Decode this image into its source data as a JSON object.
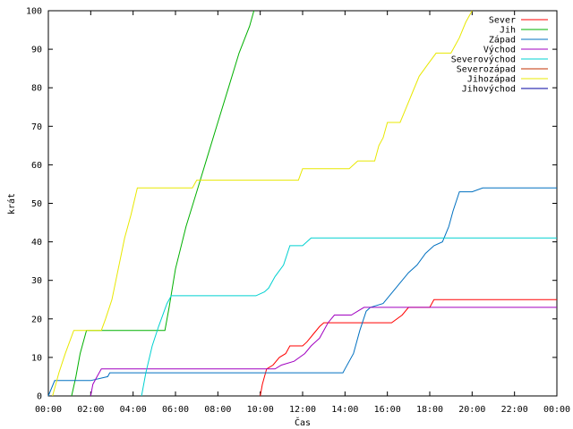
{
  "chart_data": {
    "type": "line",
    "title": "",
    "xlabel": "Čas",
    "ylabel": "krát",
    "xlim": [
      0,
      24
    ],
    "ylim": [
      0,
      100
    ],
    "x_ticks": [
      {
        "value": 0,
        "label": "00:00"
      },
      {
        "value": 2,
        "label": "02:00"
      },
      {
        "value": 4,
        "label": "04:00"
      },
      {
        "value": 6,
        "label": "06:00"
      },
      {
        "value": 8,
        "label": "08:00"
      },
      {
        "value": 10,
        "label": "10:00"
      },
      {
        "value": 12,
        "label": "12:00"
      },
      {
        "value": 14,
        "label": "14:00"
      },
      {
        "value": 16,
        "label": "16:00"
      },
      {
        "value": 18,
        "label": "18:00"
      },
      {
        "value": 20,
        "label": "20:00"
      },
      {
        "value": 22,
        "label": "22:00"
      },
      {
        "value": 24,
        "label": "00:00"
      }
    ],
    "y_ticks": [
      0,
      10,
      20,
      30,
      40,
      50,
      60,
      70,
      80,
      90,
      100
    ],
    "grid": false,
    "legend_position": "top-right",
    "series": [
      {
        "name": "Sever",
        "color": "#ff0000",
        "points": [
          [
            10.0,
            0
          ],
          [
            10.1,
            3
          ],
          [
            10.3,
            7
          ],
          [
            10.6,
            8
          ],
          [
            10.9,
            10
          ],
          [
            11.2,
            11
          ],
          [
            11.4,
            13
          ],
          [
            12.0,
            13
          ],
          [
            12.2,
            14
          ],
          [
            12.5,
            16
          ],
          [
            12.8,
            18
          ],
          [
            13.0,
            19
          ],
          [
            13.6,
            19
          ],
          [
            14.7,
            19
          ],
          [
            15.0,
            19
          ],
          [
            15.6,
            19
          ],
          [
            16.2,
            19
          ],
          [
            16.7,
            21
          ],
          [
            17.0,
            23
          ],
          [
            18.0,
            23
          ],
          [
            18.2,
            25
          ],
          [
            20.0,
            25
          ],
          [
            24.0,
            25
          ]
        ]
      },
      {
        "name": "Jih",
        "color": "#00b000",
        "points": [
          [
            1.1,
            0
          ],
          [
            1.3,
            5
          ],
          [
            1.5,
            11
          ],
          [
            1.8,
            17
          ],
          [
            2.5,
            17
          ],
          [
            5.5,
            17
          ],
          [
            5.7,
            23
          ],
          [
            6.0,
            33
          ],
          [
            6.5,
            44
          ],
          [
            7.0,
            53
          ],
          [
            7.5,
            62
          ],
          [
            8.0,
            71
          ],
          [
            8.5,
            80
          ],
          [
            9.0,
            89
          ],
          [
            9.5,
            96
          ],
          [
            9.7,
            100
          ]
        ]
      },
      {
        "name": "Západ",
        "color": "#0070c0",
        "points": [
          [
            0.0,
            0
          ],
          [
            0.3,
            4
          ],
          [
            2.0,
            4
          ],
          [
            2.8,
            5
          ],
          [
            2.9,
            6
          ],
          [
            13.0,
            6
          ],
          [
            13.9,
            6
          ],
          [
            14.0,
            7
          ],
          [
            14.4,
            11
          ],
          [
            14.7,
            17
          ],
          [
            15.0,
            22
          ],
          [
            15.2,
            23
          ],
          [
            15.8,
            24
          ],
          [
            16.1,
            26
          ],
          [
            16.4,
            28
          ],
          [
            16.7,
            30
          ],
          [
            17.0,
            32
          ],
          [
            17.4,
            34
          ],
          [
            17.8,
            37
          ],
          [
            18.2,
            39
          ],
          [
            18.6,
            40
          ],
          [
            18.9,
            44
          ],
          [
            19.1,
            48
          ],
          [
            19.4,
            53
          ],
          [
            20.0,
            53
          ],
          [
            20.5,
            54
          ],
          [
            24.0,
            54
          ]
        ]
      },
      {
        "name": "Východ",
        "color": "#a000c0",
        "points": [
          [
            2.0,
            0
          ],
          [
            2.1,
            3
          ],
          [
            2.3,
            5
          ],
          [
            2.5,
            7
          ],
          [
            10.2,
            7
          ],
          [
            10.7,
            7
          ],
          [
            11.0,
            8
          ],
          [
            11.6,
            9
          ],
          [
            12.1,
            11
          ],
          [
            12.4,
            13
          ],
          [
            12.8,
            15
          ],
          [
            13.2,
            19
          ],
          [
            13.5,
            21
          ],
          [
            14.3,
            21
          ],
          [
            14.6,
            22
          ],
          [
            14.9,
            23
          ],
          [
            18.0,
            23
          ],
          [
            24.0,
            23
          ]
        ]
      },
      {
        "name": "Severovýchod",
        "color": "#00d0d0",
        "points": [
          [
            4.4,
            0
          ],
          [
            4.6,
            6
          ],
          [
            4.9,
            13
          ],
          [
            5.2,
            18
          ],
          [
            5.6,
            24
          ],
          [
            5.8,
            26
          ],
          [
            9.8,
            26
          ],
          [
            10.2,
            27
          ],
          [
            10.4,
            28
          ],
          [
            10.7,
            31
          ],
          [
            11.1,
            34
          ],
          [
            11.4,
            39
          ],
          [
            12.0,
            39
          ],
          [
            12.4,
            41
          ],
          [
            17.0,
            41
          ],
          [
            24.0,
            41
          ]
        ]
      },
      {
        "name": "Severozápad",
        "color": "#c03000",
        "points": []
      },
      {
        "name": "Jihozápad",
        "color": "#e8e800",
        "points": [
          [
            0.2,
            0
          ],
          [
            0.5,
            6
          ],
          [
            0.8,
            11
          ],
          [
            1.2,
            17
          ],
          [
            2.5,
            17
          ],
          [
            2.7,
            20
          ],
          [
            3.0,
            25
          ],
          [
            3.3,
            33
          ],
          [
            3.6,
            41
          ],
          [
            3.9,
            47
          ],
          [
            4.2,
            54
          ],
          [
            6.8,
            54
          ],
          [
            7.0,
            56
          ],
          [
            11.5,
            56
          ],
          [
            11.8,
            56
          ],
          [
            12.0,
            59
          ],
          [
            14.2,
            59
          ],
          [
            14.6,
            61
          ],
          [
            15.4,
            61
          ],
          [
            15.6,
            65
          ],
          [
            15.8,
            67
          ],
          [
            16.0,
            71
          ],
          [
            16.6,
            71
          ],
          [
            16.9,
            75
          ],
          [
            17.2,
            79
          ],
          [
            17.5,
            83
          ],
          [
            17.9,
            86
          ],
          [
            18.3,
            89
          ],
          [
            19.0,
            89
          ],
          [
            19.4,
            93
          ],
          [
            19.7,
            97
          ],
          [
            20.0,
            100
          ]
        ]
      },
      {
        "name": "Jihovýchod",
        "color": "#0000a0",
        "points": []
      }
    ]
  }
}
